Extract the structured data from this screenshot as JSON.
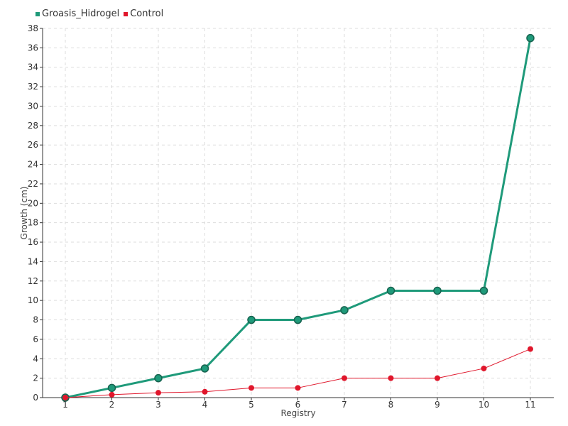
{
  "colors": {
    "groasis": "#1f9a7a",
    "groasis_marker_stroke": "#17624f",
    "control": "#e0162b",
    "grid": "#dddddd",
    "axis": "#333333"
  },
  "chart_data": {
    "type": "line",
    "title": "",
    "xlabel": "Registry",
    "ylabel": "Growth (cm)",
    "x": [
      1,
      2,
      3,
      4,
      5,
      6,
      7,
      8,
      9,
      10,
      11
    ],
    "ylim": [
      0,
      38
    ],
    "yticks": [
      0,
      2,
      4,
      6,
      8,
      10,
      12,
      14,
      16,
      18,
      20,
      22,
      24,
      26,
      28,
      30,
      32,
      34,
      36,
      38
    ],
    "grid": true,
    "legend_position": "top-left",
    "series": [
      {
        "name": "Groasis_Hidrogel",
        "color": "#1f9a7a",
        "values": [
          0,
          1,
          2,
          3,
          8,
          8,
          9,
          11,
          11,
          11,
          37
        ]
      },
      {
        "name": "Control",
        "color": "#e0162b",
        "values": [
          0,
          0.3,
          0.5,
          0.6,
          1,
          1,
          2,
          2,
          2,
          3,
          5
        ]
      }
    ]
  }
}
